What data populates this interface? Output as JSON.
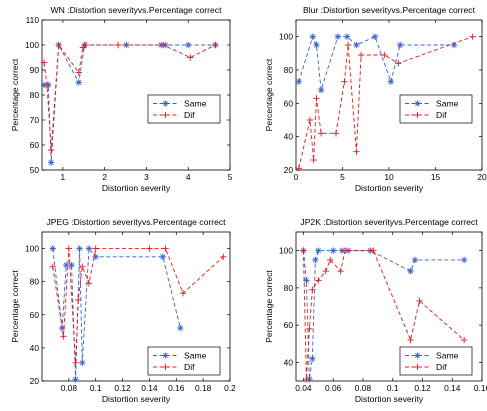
{
  "chart_data": [
    {
      "type": "line",
      "title": "WN :Distortion severityvs.Percentage correct",
      "xlabel": "Distortion severity",
      "ylabel": "Percentage correct",
      "xlim": [
        0.5,
        5
      ],
      "ylim": [
        50,
        110
      ],
      "xticks": [
        1,
        2,
        3,
        4,
        5
      ],
      "xtick_labels": [
        "1",
        "2",
        "3",
        "4",
        "5"
      ],
      "yticks": [
        50,
        60,
        70,
        80,
        90,
        100,
        110
      ],
      "ytick_labels": [
        "50",
        "60",
        "70",
        "80",
        "90",
        "100",
        "110"
      ],
      "legend": "center-right",
      "series": [
        {
          "name": "Same",
          "color": "#3a5fcd",
          "marker": "*",
          "x": [
            0.55,
            0.65,
            0.72,
            0.9,
            1.38,
            1.52,
            2.52,
            3.35,
            3.45,
            4.0,
            4.65
          ],
          "y": [
            84,
            84,
            53,
            100,
            85,
            100,
            100,
            100,
            100,
            100,
            100
          ]
        },
        {
          "name": "Dif",
          "color": "#e41a1c",
          "marker": "+",
          "x": [
            0.55,
            0.62,
            0.72,
            0.9,
            1.38,
            1.48,
            1.55,
            2.32,
            3.4,
            4.05,
            4.65
          ],
          "y": [
            93,
            84,
            58,
            100,
            89,
            99,
            100,
            100,
            100,
            95,
            100
          ]
        }
      ]
    },
    {
      "type": "line",
      "title": "Blur :Distortion severityvs.Percentage correct",
      "xlabel": "Distortion severity",
      "ylabel": "Percentage correct",
      "xlim": [
        0,
        20
      ],
      "ylim": [
        20,
        110
      ],
      "xticks": [
        0,
        5,
        10,
        15,
        20
      ],
      "xtick_labels": [
        "0",
        "5",
        "10",
        "15",
        "20"
      ],
      "yticks": [
        20,
        40,
        60,
        80,
        100
      ],
      "ytick_labels": [
        "20",
        "40",
        "60",
        "80",
        "100"
      ],
      "legend": "center-right",
      "series": [
        {
          "name": "Same",
          "color": "#3a5fcd",
          "marker": "*",
          "x": [
            0.3,
            1.8,
            2.2,
            2.7,
            4.5,
            5.5,
            6.5,
            8.5,
            10.2,
            11.2,
            17
          ],
          "y": [
            73,
            100,
            95,
            68,
            100,
            100,
            95,
            100,
            73,
            95,
            95
          ]
        },
        {
          "name": "Dif",
          "color": "#e41a1c",
          "marker": "+",
          "x": [
            0.3,
            1.5,
            1.9,
            2.2,
            2.7,
            4.3,
            5.2,
            5.6,
            6.5,
            7.0,
            9.5,
            11,
            19
          ],
          "y": [
            21,
            50,
            26,
            63,
            42,
            42,
            73,
            95,
            31,
            89,
            89,
            84,
            100
          ]
        }
      ]
    },
    {
      "type": "line",
      "title": "JPEG :Distortion severityvs.Percentage correct",
      "xlabel": "Distortion severity",
      "ylabel": "Percentage correct",
      "xlim": [
        0.06,
        0.2
      ],
      "ylim": [
        20,
        110
      ],
      "xticks": [
        0.08,
        0.1,
        0.12,
        0.14,
        0.16,
        0.18,
        0.2
      ],
      "xtick_labels": [
        "0.08",
        "0.1",
        "0.12",
        "0.14",
        "0.16",
        "0.18",
        "0.2"
      ],
      "yticks": [
        20,
        40,
        60,
        80,
        100
      ],
      "ytick_labels": [
        "20",
        "40",
        "60",
        "80",
        "100"
      ],
      "legend": "bottom-right",
      "series": [
        {
          "name": "Same",
          "color": "#3a5fcd",
          "marker": "*",
          "x": [
            0.068,
            0.075,
            0.078,
            0.082,
            0.085,
            0.088,
            0.09,
            0.095,
            0.1,
            0.15,
            0.163
          ],
          "y": [
            100,
            52,
            90,
            90,
            21,
            100,
            31,
            100,
            95,
            95,
            52
          ]
        },
        {
          "name": "Dif",
          "color": "#e41a1c",
          "marker": "+",
          "x": [
            0.068,
            0.076,
            0.08,
            0.085,
            0.087,
            0.09,
            0.095,
            0.1,
            0.14,
            0.152,
            0.165,
            0.195
          ],
          "y": [
            89,
            47,
            100,
            31,
            69,
            89,
            79,
            100,
            100,
            100,
            73,
            95
          ]
        }
      ]
    },
    {
      "type": "line",
      "title": "JP2K :Distortion severityvs.Percentage correct",
      "xlabel": "Distortion severity",
      "ylabel": "Percentage correct",
      "xlim": [
        0.035,
        0.16
      ],
      "ylim": [
        30,
        110
      ],
      "xticks": [
        0.04,
        0.06,
        0.08,
        0.1,
        0.12,
        0.14,
        0.16
      ],
      "xtick_labels": [
        "0.04",
        "0.06",
        "0.08",
        "0.1",
        "0.12",
        "0.14",
        "0.16"
      ],
      "yticks": [
        40,
        60,
        80,
        100
      ],
      "ytick_labels": [
        "40",
        "60",
        "80",
        "100"
      ],
      "legend": "bottom-right",
      "series": [
        {
          "name": "Same",
          "color": "#3a5fcd",
          "marker": "*",
          "x": [
            0.04,
            0.042,
            0.044,
            0.046,
            0.048,
            0.05,
            0.06,
            0.066,
            0.07,
            0.085,
            0.112,
            0.115,
            0.148
          ],
          "y": [
            100,
            84,
            31,
            42,
            95,
            100,
            100,
            100,
            100,
            100,
            89,
            95,
            95
          ]
        },
        {
          "name": "Dif",
          "color": "#e41a1c",
          "marker": "+",
          "x": [
            0.04,
            0.042,
            0.044,
            0.046,
            0.05,
            0.055,
            0.058,
            0.065,
            0.068,
            0.087,
            0.112,
            0.118,
            0.148
          ],
          "y": [
            100,
            31,
            58,
            79,
            84,
            89,
            95,
            89,
            100,
            100,
            52,
            73,
            52
          ]
        }
      ]
    }
  ]
}
